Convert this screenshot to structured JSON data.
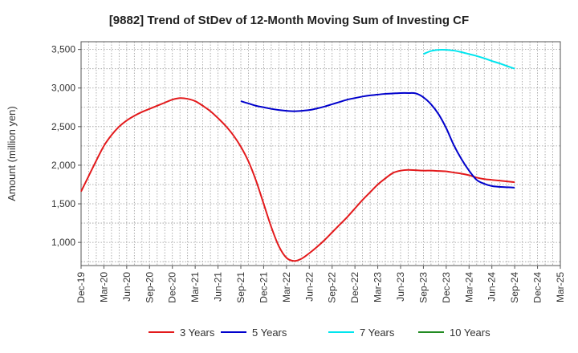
{
  "chart_data": {
    "type": "line",
    "title": "[9882]  Trend of StDev of 12-Month Moving Sum of Investing CF",
    "xlabel": "",
    "ylabel": "Amount (million yen)",
    "ylim": [
      700,
      3600
    ],
    "yticks": [
      1000,
      1500,
      2000,
      2500,
      3000,
      3500
    ],
    "ytick_labels": [
      "1,000",
      "1,500",
      "2,000",
      "2,500",
      "3,000",
      "3,500"
    ],
    "x_start": "Dec-19",
    "x_end": "Mar-25",
    "xtick_labels": [
      "Dec-19",
      "Mar-20",
      "Jun-20",
      "Sep-20",
      "Dec-20",
      "Mar-21",
      "Jun-21",
      "Sep-21",
      "Dec-21",
      "Mar-22",
      "Jun-22",
      "Sep-22",
      "Dec-22",
      "Mar-23",
      "Jun-23",
      "Sep-23",
      "Dec-23",
      "Mar-24",
      "Jun-24",
      "Sep-24",
      "Dec-24",
      "Mar-25"
    ],
    "grid": true,
    "legend_position": "bottom",
    "series": [
      {
        "name": "3 Years",
        "color": "#e31a1c",
        "x": [
          "Dec-19",
          "Jan-20",
          "Feb-20",
          "Mar-20",
          "Apr-20",
          "May-20",
          "Jun-20",
          "Jul-20",
          "Aug-20",
          "Sep-20",
          "Oct-20",
          "Nov-20",
          "Dec-20",
          "Jan-21",
          "Feb-21",
          "Mar-21",
          "Apr-21",
          "May-21",
          "Jun-21",
          "Jul-21",
          "Aug-21",
          "Sep-21",
          "Oct-21",
          "Nov-21",
          "Dec-21",
          "Jan-22",
          "Feb-22",
          "Mar-22",
          "Apr-22",
          "May-22",
          "Jun-22",
          "Jul-22",
          "Aug-22",
          "Sep-22",
          "Oct-22",
          "Nov-22",
          "Dec-22",
          "Jan-23",
          "Feb-23",
          "Mar-23",
          "Apr-23",
          "May-23",
          "Jun-23",
          "Jul-23",
          "Aug-23",
          "Sep-23",
          "Oct-23",
          "Nov-23",
          "Dec-23",
          "Jan-24",
          "Feb-24",
          "Mar-24",
          "Apr-24",
          "May-24",
          "Jun-24",
          "Jul-24",
          "Aug-24",
          "Sep-24"
        ],
        "values": [
          1660,
          1860,
          2060,
          2250,
          2390,
          2500,
          2580,
          2640,
          2690,
          2730,
          2770,
          2810,
          2850,
          2870,
          2860,
          2830,
          2770,
          2700,
          2610,
          2510,
          2390,
          2240,
          2050,
          1800,
          1500,
          1200,
          950,
          800,
          760,
          790,
          860,
          940,
          1030,
          1130,
          1230,
          1330,
          1440,
          1550,
          1650,
          1750,
          1830,
          1900,
          1930,
          1940,
          1935,
          1930,
          1930,
          1925,
          1920,
          1905,
          1890,
          1870,
          1840,
          1820,
          1810,
          1800,
          1790,
          1780
        ],
        "x_dates": [
          "Dec-19",
          "Jan-20",
          "Feb-20",
          "Mar-20",
          "Apr-20",
          "May-20",
          "Jun-20",
          "Jul-20",
          "Aug-20",
          "Sep-20",
          "Oct-20",
          "Nov-20",
          "Dec-20",
          "Jan-21",
          "Feb-21",
          "Mar-21",
          "Apr-21",
          "May-21",
          "Jun-21",
          "Jul-21",
          "Aug-21",
          "Sep-21",
          "Oct-21",
          "Nov-21",
          "Dec-21",
          "Jan-22",
          "Feb-22",
          "Mar-22",
          "Apr-22",
          "May-22",
          "Jun-22",
          "Jul-22",
          "Aug-22",
          "Sep-22",
          "Oct-22",
          "Nov-22",
          "Dec-22",
          "Jan-23",
          "Feb-23",
          "Mar-23",
          "Apr-23",
          "May-23",
          "Jun-23",
          "Jul-23",
          "Aug-23",
          "Sep-23",
          "Oct-23",
          "Nov-23",
          "Dec-23",
          "Jan-24",
          "Feb-24",
          "Mar-24",
          "Apr-24",
          "May-24",
          "Jun-24",
          "Jul-24",
          "Aug-24",
          "Sep-24"
        ]
      },
      {
        "name": "5 Years",
        "color": "#0000cc",
        "x": [
          "Sep-21",
          "Oct-21",
          "Nov-21",
          "Dec-21",
          "Jan-22",
          "Feb-22",
          "Mar-22",
          "Apr-22",
          "May-22",
          "Jun-22",
          "Jul-22",
          "Aug-22",
          "Sep-22",
          "Oct-22",
          "Nov-22",
          "Dec-22",
          "Jan-23",
          "Feb-23",
          "Mar-23",
          "Apr-23",
          "May-23",
          "Jun-23",
          "Jul-23",
          "Aug-23",
          "Sep-23",
          "Oct-23",
          "Nov-23",
          "Dec-23",
          "Jan-24",
          "Feb-24",
          "Mar-24",
          "Apr-24",
          "May-24",
          "Jun-24",
          "Jul-24",
          "Aug-24",
          "Sep-24"
        ],
        "values": [
          2830,
          2800,
          2770,
          2750,
          2730,
          2715,
          2705,
          2700,
          2705,
          2715,
          2735,
          2760,
          2790,
          2820,
          2850,
          2870,
          2890,
          2905,
          2915,
          2925,
          2930,
          2935,
          2935,
          2930,
          2880,
          2790,
          2660,
          2480,
          2260,
          2080,
          1930,
          1810,
          1760,
          1730,
          1720,
          1715,
          1710
        ]
      },
      {
        "name": "7 Years",
        "color": "#00e5ee",
        "x": [
          "Sep-23",
          "Oct-23",
          "Nov-23",
          "Dec-23",
          "Jan-24",
          "Feb-24",
          "Mar-24",
          "Apr-24",
          "May-24",
          "Jun-24",
          "Jul-24",
          "Aug-24",
          "Sep-24"
        ],
        "values": [
          3440,
          3480,
          3495,
          3495,
          3485,
          3465,
          3440,
          3415,
          3385,
          3350,
          3320,
          3285,
          3250
        ]
      },
      {
        "name": "10 Years",
        "color": "#228b22",
        "x": [],
        "values": []
      }
    ]
  }
}
